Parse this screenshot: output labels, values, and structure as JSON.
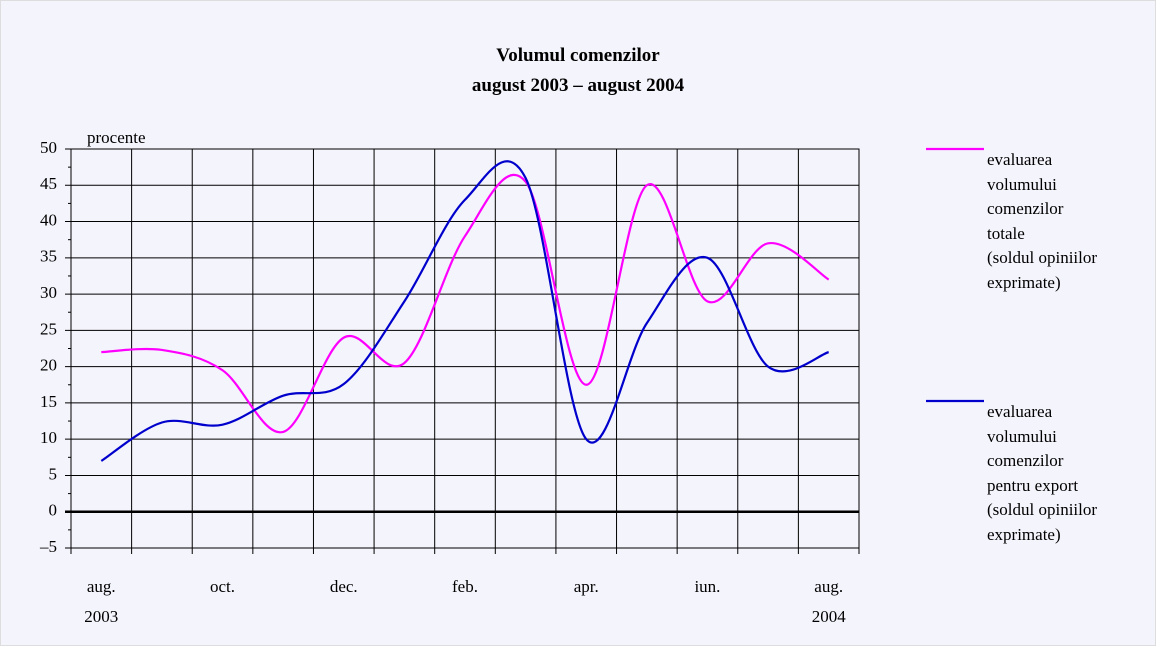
{
  "chart_data": {
    "type": "line",
    "title": "Volumul comenzilor\naugust 2003 – august 2004",
    "y_label": "procente",
    "categories": [
      "aug.\n2003",
      null,
      "oct.",
      null,
      "dec.",
      null,
      "feb.",
      null,
      "apr.",
      null,
      "iun.",
      null,
      "aug.\n2004"
    ],
    "series": [
      {
        "name": "evaluarea\nvolumului\ncomenzilor\ntotale\n(soldul opiniilor\nexprimate)",
        "color": "#ff00ff",
        "values": [
          22,
          22.3,
          19.5,
          11,
          24,
          20.5,
          38,
          45.5,
          17.5,
          45,
          29,
          37,
          32
        ]
      },
      {
        "name": "evaluarea\nvolumului\ncomenzilor\npentru export\n(soldul opiniilor\nexprimate)",
        "color": "#0000cc",
        "values": [
          7,
          12.3,
          12,
          16,
          17.6,
          29,
          43,
          46,
          10,
          26,
          35,
          20,
          22
        ]
      }
    ],
    "ylim": [
      -5,
      50
    ],
    "yticks": [
      {
        "value": -5,
        "label": "–5"
      },
      0,
      5,
      10,
      15,
      20,
      25,
      30,
      35,
      40,
      45,
      50
    ],
    "grid": true,
    "legend": "right"
  }
}
